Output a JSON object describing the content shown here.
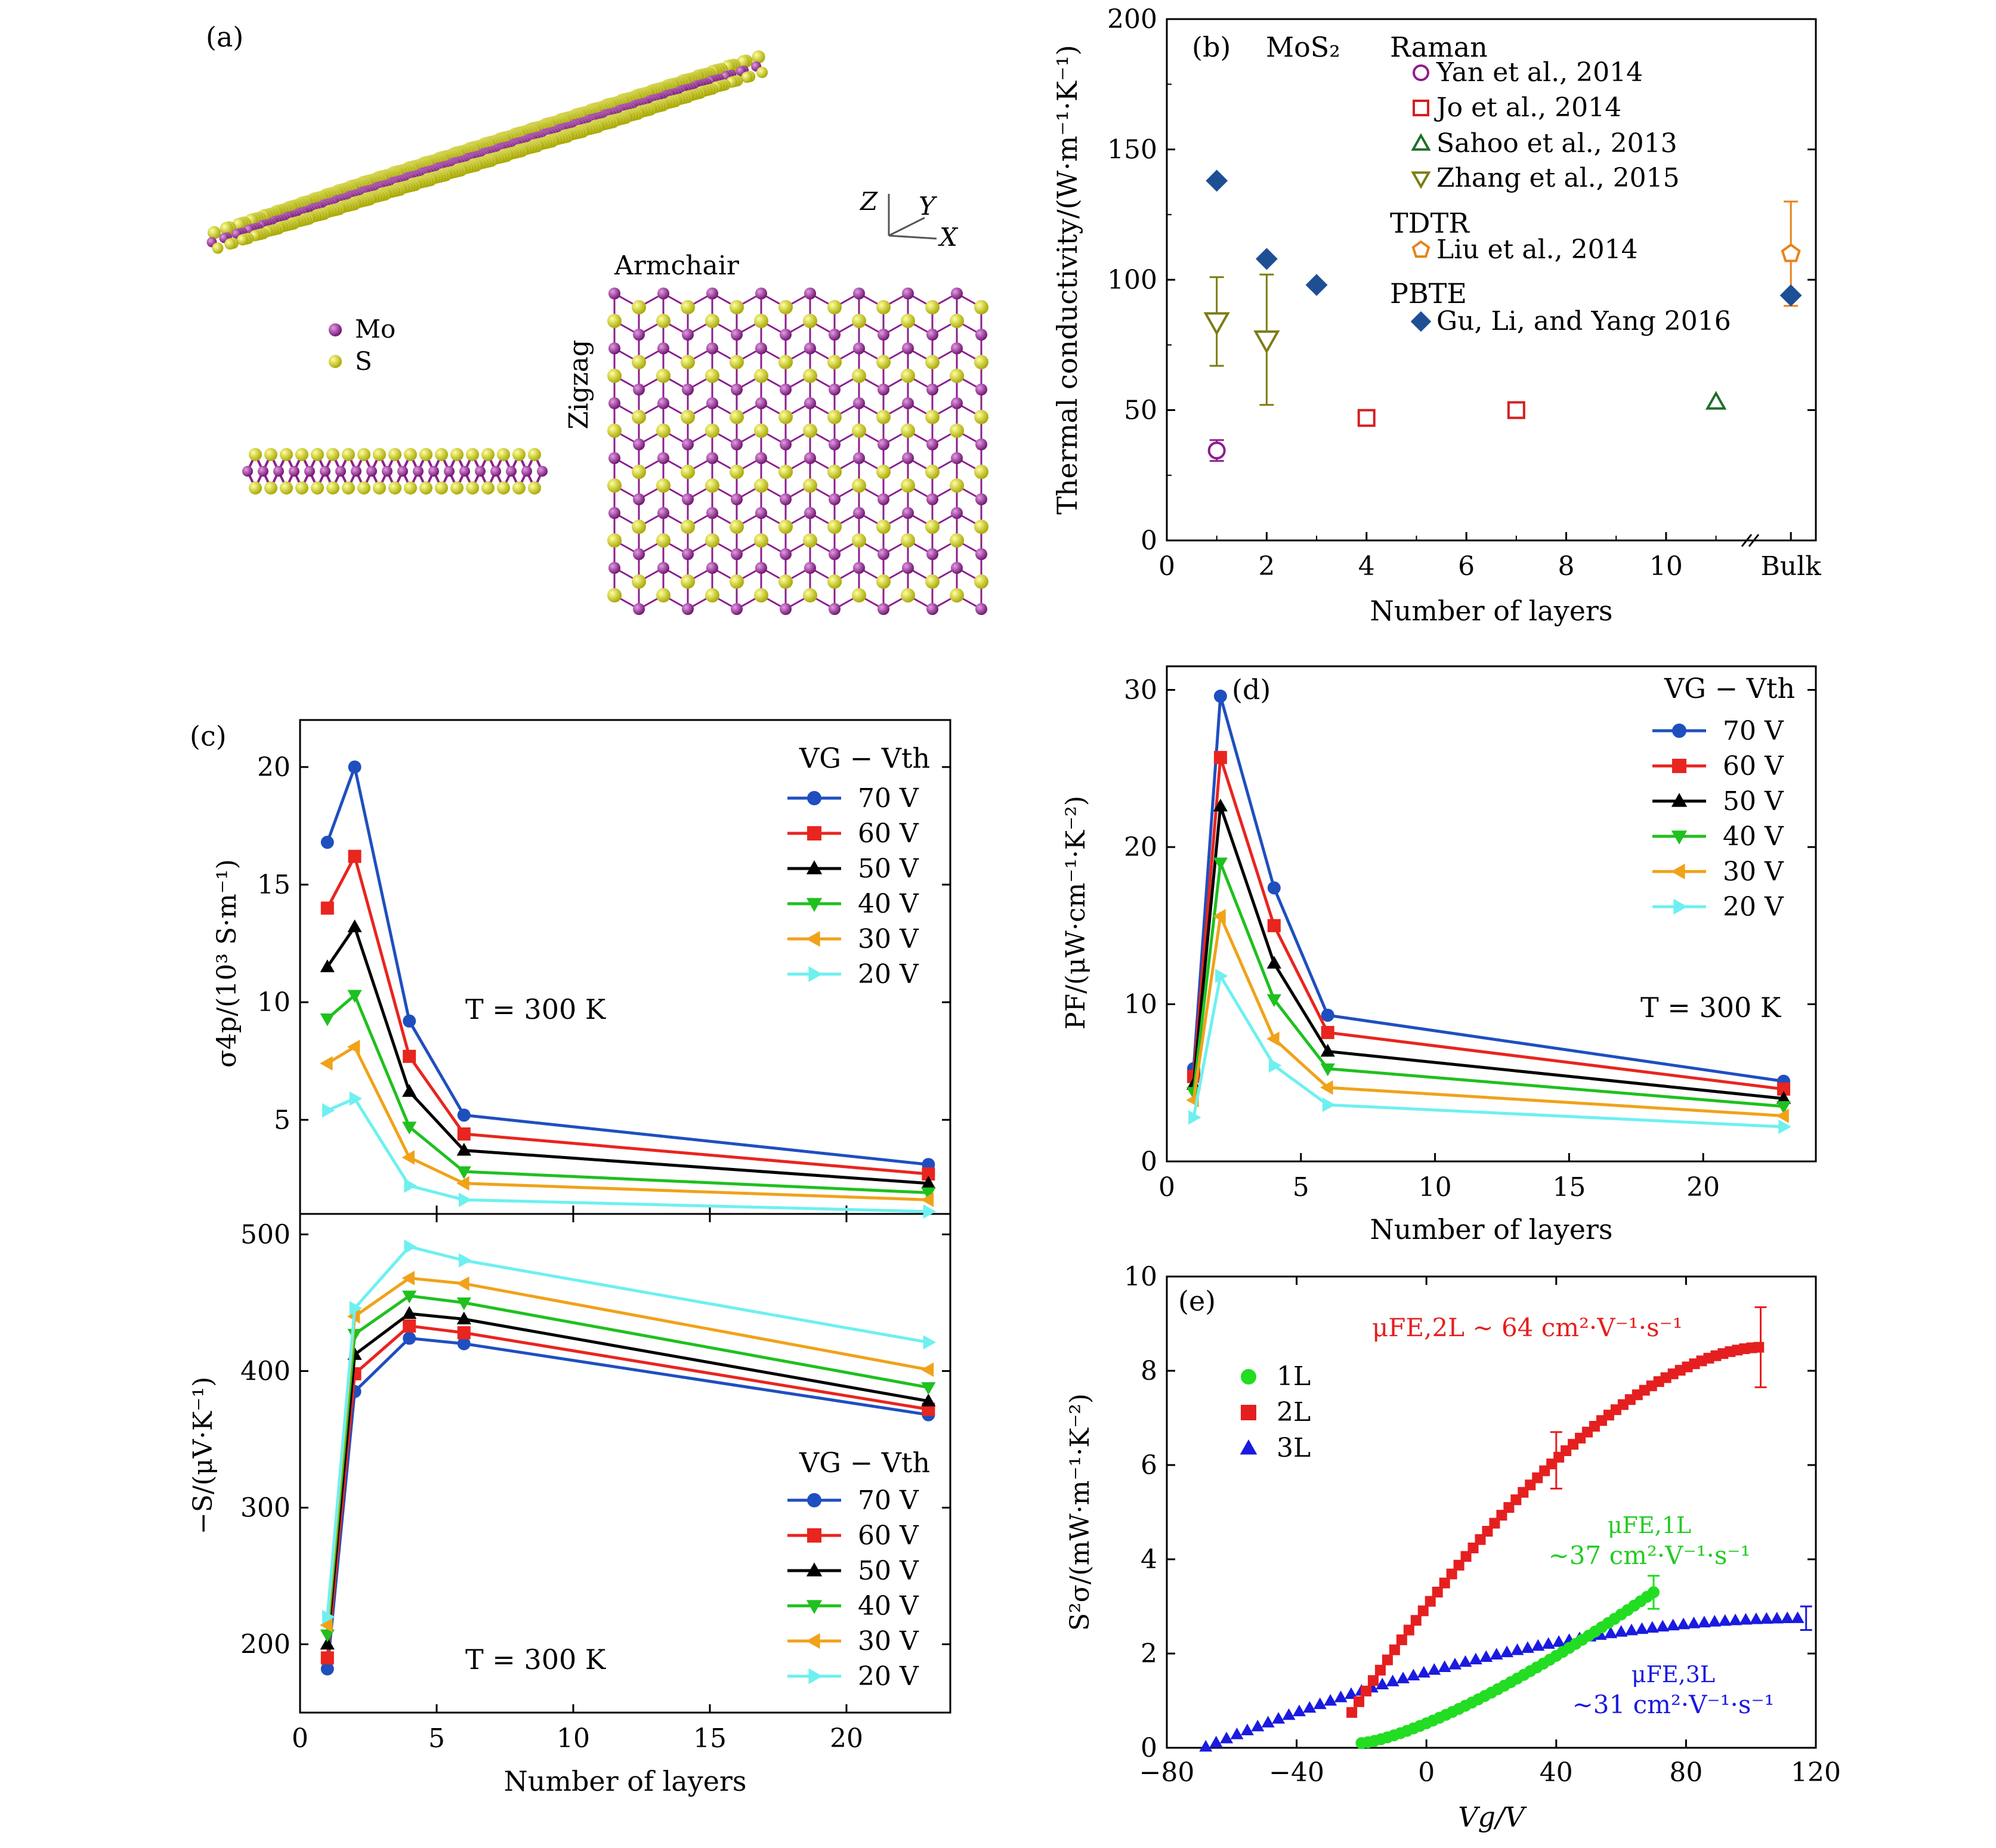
{
  "panel_labels": {
    "a": "(a)",
    "b": "(b)",
    "c": "(c)",
    "d": "(d)",
    "e": "(e)"
  },
  "panel_a": {
    "axes": {
      "z": "Z",
      "y": "Y",
      "x": "X"
    },
    "legend": [
      {
        "label": "Mo",
        "color": "#8e1d8e"
      },
      {
        "label": "S",
        "color": "#d6d610"
      }
    ],
    "armchair": "Armchair",
    "zigzag": "Zigzag"
  },
  "colors": {
    "mo": "#8e1d8e",
    "s": "#d6d610",
    "v70": "#1f4fbf",
    "v60": "#e8251f",
    "v50": "#000000",
    "v40": "#1fc01f",
    "v30": "#f0a21a",
    "v20": "#6ef0f0"
  },
  "chart_data": [
    {
      "panel": "b",
      "type": "scatter",
      "material": "MoS₂",
      "xlabel": "Number of layers",
      "ylabel": "Thermal conductivity/(W·m⁻¹·K⁻¹)",
      "xlim": [
        0,
        13
      ],
      "ylim": [
        0,
        200
      ],
      "xticks": [
        0,
        2,
        4,
        6,
        8,
        10
      ],
      "xtick_bulk": "Bulk",
      "yticks": [
        0,
        50,
        100,
        150,
        200
      ],
      "groups": [
        "Raman",
        "TDTR",
        "PBTE"
      ],
      "series": [
        {
          "name": "Yan et al., 2014",
          "group": "Raman",
          "marker": "circle",
          "color": "#8e1d8e",
          "points": [
            {
              "x": 1,
              "y": 34.5,
              "err": 4
            }
          ]
        },
        {
          "name": "Jo et al., 2014",
          "group": "Raman",
          "marker": "square",
          "color": "#d42020",
          "points": [
            {
              "x": 4,
              "y": 47
            },
            {
              "x": 7,
              "y": 50
            }
          ]
        },
        {
          "name": "Sahoo et al., 2013",
          "group": "Raman",
          "marker": "triangle-up",
          "color": "#1e6e2a",
          "points": [
            {
              "x": 11,
              "y": 53
            }
          ]
        },
        {
          "name": "Zhang et al., 2015",
          "group": "Raman",
          "marker": "triangle-down",
          "color": "#7c7c14",
          "points": [
            {
              "x": 1,
              "y": 84,
              "err": 17
            },
            {
              "x": 2,
              "y": 77,
              "err": 25
            }
          ]
        },
        {
          "name": "Liu et al., 2014",
          "group": "TDTR",
          "marker": "pentagon",
          "color": "#e8811a",
          "points": [
            {
              "x": "Bulk",
              "y": 110,
              "err": 20
            }
          ]
        },
        {
          "name": "Gu, Li, and Yang 2016",
          "group": "PBTE",
          "marker": "diamond",
          "color": "#1e4f94",
          "points": [
            {
              "x": 1,
              "y": 138
            },
            {
              "x": 2,
              "y": 108
            },
            {
              "x": 3,
              "y": 98
            },
            {
              "x": "Bulk",
              "y": 94
            }
          ]
        }
      ]
    },
    {
      "panel": "c-top",
      "type": "line",
      "ylabel": "σ4p/(10³ S·m⁻¹)",
      "ylim": [
        1,
        22
      ],
      "yticks": [
        5,
        10,
        15,
        20
      ],
      "xlim": [
        0,
        23.8
      ],
      "annotation": "T = 300 K",
      "legend_title": "VG − Vth",
      "x": [
        1,
        2,
        4,
        6,
        23
      ],
      "series": [
        {
          "name": "70 V",
          "marker": "circle",
          "values": [
            16.8,
            20.0,
            9.2,
            5.2,
            3.1
          ]
        },
        {
          "name": "60 V",
          "marker": "square",
          "values": [
            14.0,
            16.2,
            7.7,
            4.4,
            2.7
          ]
        },
        {
          "name": "50 V",
          "marker": "triangle-up",
          "values": [
            11.5,
            13.2,
            6.2,
            3.7,
            2.3
          ]
        },
        {
          "name": "40 V",
          "marker": "triangle-down",
          "values": [
            9.3,
            10.3,
            4.7,
            2.8,
            1.9
          ]
        },
        {
          "name": "30 V",
          "marker": "triangle-left",
          "values": [
            7.4,
            8.1,
            3.4,
            2.3,
            1.6
          ]
        },
        {
          "name": "20 V",
          "marker": "triangle-right",
          "values": [
            5.4,
            5.9,
            2.2,
            1.6,
            1.1
          ]
        }
      ]
    },
    {
      "panel": "c-bottom",
      "type": "line",
      "xlabel": "Number of layers",
      "ylabel": "−S/(μV·K⁻¹)",
      "ylim": [
        150,
        515
      ],
      "yticks": [
        200,
        300,
        400,
        500
      ],
      "xlim": [
        0,
        23.8
      ],
      "xticks": [
        0,
        5,
        10,
        15,
        20
      ],
      "annotation": "T = 300 K",
      "legend_title": "VG − Vth",
      "x": [
        1,
        2,
        4,
        6,
        23
      ],
      "series": [
        {
          "name": "70 V",
          "marker": "circle",
          "values": [
            182,
            385,
            424,
            420,
            368
          ]
        },
        {
          "name": "60 V",
          "marker": "square",
          "values": [
            190,
            398,
            433,
            428,
            372
          ]
        },
        {
          "name": "50 V",
          "marker": "triangle-up",
          "values": [
            200,
            412,
            442,
            438,
            378
          ]
        },
        {
          "name": "40 V",
          "marker": "triangle-down",
          "values": [
            207,
            427,
            455,
            450,
            388
          ]
        },
        {
          "name": "30 V",
          "marker": "triangle-left",
          "values": [
            214,
            440,
            468,
            464,
            401
          ]
        },
        {
          "name": "20 V",
          "marker": "triangle-right",
          "values": [
            220,
            446,
            491,
            481,
            421
          ]
        }
      ]
    },
    {
      "panel": "d",
      "type": "line",
      "xlabel": "Number of layers",
      "ylabel": "PF/(μW·cm⁻¹·K⁻²)",
      "xlim": [
        0,
        24.2
      ],
      "ylim": [
        0,
        31.5
      ],
      "xticks": [
        0,
        5,
        10,
        15,
        20
      ],
      "yticks": [
        0,
        10,
        20,
        30
      ],
      "annotation": "T = 300 K",
      "legend_title": "VG − Vth",
      "x": [
        1,
        2,
        4,
        6,
        23
      ],
      "series": [
        {
          "name": "70 V",
          "marker": "circle",
          "values": [
            5.9,
            29.6,
            17.4,
            9.3,
            5.1
          ]
        },
        {
          "name": "60 V",
          "marker": "square",
          "values": [
            5.4,
            25.7,
            15.0,
            8.2,
            4.6
          ]
        },
        {
          "name": "50 V",
          "marker": "triangle-up",
          "values": [
            4.9,
            22.6,
            12.6,
            7.0,
            4.0
          ]
        },
        {
          "name": "40 V",
          "marker": "triangle-down",
          "values": [
            4.4,
            19.0,
            10.3,
            5.9,
            3.5
          ]
        },
        {
          "name": "30 V",
          "marker": "triangle-left",
          "values": [
            3.9,
            15.6,
            7.8,
            4.7,
            2.9
          ]
        },
        {
          "name": "20 V",
          "marker": "triangle-right",
          "values": [
            2.8,
            11.8,
            6.1,
            3.6,
            2.2
          ]
        }
      ]
    },
    {
      "panel": "e",
      "type": "scatter",
      "xlabel": "Vg/V",
      "ylabel": "S²σ/(mW·m⁻¹·K⁻²)",
      "xlim": [
        -80,
        120
      ],
      "ylim": [
        0,
        10
      ],
      "xticks": [
        -80,
        -40,
        0,
        40,
        80,
        120
      ],
      "yticks": [
        0,
        2,
        4,
        6,
        8,
        10
      ],
      "series": [
        {
          "name": "1L",
          "marker": "circle",
          "color": "#22dd22",
          "x_range": [
            -20,
            70
          ],
          "y_range": [
            0.1,
            3.3
          ],
          "end_err": 0.35
        },
        {
          "name": "2L",
          "marker": "square",
          "color": "#e51f1f",
          "x_range": [
            -23,
            103
          ],
          "y_range": [
            0.75,
            8.5
          ],
          "err_points": [
            {
              "x": 40,
              "y": 6.1,
              "err": 0.6
            },
            {
              "x": 103,
              "y": 8.5,
              "err": 0.85
            }
          ]
        },
        {
          "name": "3L",
          "marker": "triangle-up",
          "color": "#1a1ae0",
          "x_range": [
            -68,
            117
          ],
          "y_range": [
            0.02,
            2.75
          ],
          "end_err": 0.25
        }
      ],
      "annotations": [
        {
          "text": "μFE,2L ∼ 64 cm²·V⁻¹·s⁻¹",
          "color": "#e51f1f"
        },
        {
          "text": "μFE,1L",
          "color": "#22cc22"
        },
        {
          "text": "∼37 cm²·V⁻¹·s⁻¹",
          "color": "#22cc22"
        },
        {
          "text": "μFE,3L",
          "color": "#1a1ae0"
        },
        {
          "text": "∼31 cm²·V⁻¹·s⁻¹",
          "color": "#1a1ae0"
        }
      ]
    }
  ]
}
